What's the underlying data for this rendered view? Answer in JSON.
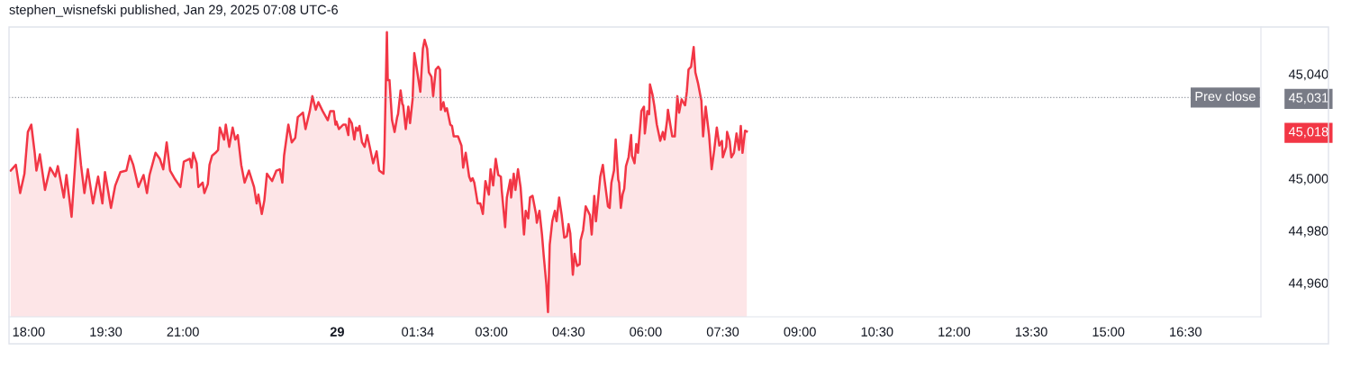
{
  "chart_data": {
    "type": "area",
    "title": "stephen_wisnefski published, Jan 29, 2025 07:08 UTC-6",
    "x": [
      "2025-01-28T17:39",
      "2025-01-28T17:45",
      "2025-01-28T17:50",
      "2025-01-28T17:55",
      "2025-01-28T17:59",
      "2025-01-28T18:03",
      "2025-01-28T18:07",
      "2025-01-28T18:09",
      "2025-01-28T18:13",
      "2025-01-28T18:19",
      "2025-01-28T18:25",
      "2025-01-28T18:31",
      "2025-01-28T18:34",
      "2025-01-28T18:41",
      "2025-01-28T18:44",
      "2025-01-28T18:50",
      "2025-01-28T18:57",
      "2025-01-28T19:01",
      "2025-01-28T19:05",
      "2025-01-28T19:09",
      "2025-01-28T19:15",
      "2025-01-28T19:21",
      "2025-01-28T19:26",
      "2025-01-28T19:29",
      "2025-01-28T19:36",
      "2025-01-28T19:41",
      "2025-01-28T19:47",
      "2025-01-28T19:54",
      "2025-01-28T19:58",
      "2025-01-28T20:02",
      "2025-01-28T20:08",
      "2025-01-28T20:14",
      "2025-01-28T20:18",
      "2025-01-28T20:21",
      "2025-01-28T20:28",
      "2025-01-28T20:33",
      "2025-01-28T20:37",
      "2025-01-28T20:41",
      "2025-01-28T20:45",
      "2025-01-28T20:50",
      "2025-01-28T20:57",
      "2025-01-28T21:01",
      "2025-01-28T21:08",
      "2025-01-28T21:10",
      "2025-01-28T21:12",
      "2025-01-28T21:16",
      "2025-01-28T21:18",
      "2025-01-28T21:23",
      "2025-01-28T21:25",
      "2025-01-28T21:29",
      "2025-01-28T21:31",
      "2025-01-28T21:34",
      "2025-01-28T21:38",
      "2025-01-28T21:41",
      "2025-01-28T21:43",
      "2025-01-28T21:48",
      "2025-01-28T21:50",
      "2025-01-28T21:54",
      "2025-01-28T21:58",
      "2025-01-28T22:01",
      "2025-01-28T22:04",
      "2025-01-28T22:08",
      "2025-01-28T22:12",
      "2025-01-28T22:17",
      "2025-01-28T22:23",
      "2025-01-28T22:26",
      "2025-01-28T22:28",
      "2025-01-28T22:32",
      "2025-01-28T22:35",
      "2025-01-28T22:38",
      "2025-01-28T22:44",
      "2025-01-28T22:49",
      "2025-01-28T22:53",
      "2025-01-28T22:56",
      "2025-01-28T22:58",
      "2025-01-28T23:03",
      "2025-01-28T23:07",
      "2025-01-28T23:11",
      "2025-01-28T23:14",
      "2025-01-28T23:20",
      "2025-01-28T23:23",
      "2025-01-28T23:28",
      "2025-01-28T23:31",
      "2025-01-28T23:35",
      "2025-01-28T23:38",
      "2025-01-28T23:43",
      "2025-01-28T23:49",
      "2025-01-28T23:52",
      "2025-01-28T23:56",
      "2025-01-28T23:58",
      "2025-01-28T23:59",
      "2025-01-29T00:02",
      "2025-01-29T00:07",
      "2025-01-29T00:10",
      "2025-01-29T00:13",
      "2025-01-29T00:14",
      "2025-01-29T00:17",
      "2025-01-29T00:20",
      "2025-01-29T00:22",
      "2025-01-29T00:24",
      "2025-01-29T00:26",
      "2025-01-29T00:29",
      "2025-01-29T00:32",
      "2025-01-29T00:35",
      "2025-01-29T00:38",
      "2025-01-29T00:42",
      "2025-01-29T00:46",
      "2025-01-29T00:49",
      "2025-01-29T00:54",
      "2025-01-29T00:55",
      "2025-01-29T00:58",
      "2025-01-29T00:59",
      "2025-01-29T01:01",
      "2025-01-29T01:04",
      "2025-01-29T01:07",
      "2025-01-29T01:10",
      "2025-01-29T01:11",
      "2025-01-29T01:14",
      "2025-01-29T01:16",
      "2025-01-29T01:17",
      "2025-01-29T01:20",
      "2025-01-29T01:23",
      "2025-01-29T01:25",
      "2025-01-29T01:28",
      "2025-01-29T01:30",
      "2025-01-29T01:33",
      "2025-01-29T01:37",
      "2025-01-29T01:40",
      "2025-01-29T01:42",
      "2025-01-29T01:45",
      "2025-01-29T01:47",
      "2025-01-29T01:50",
      "2025-01-29T01:52",
      "2025-01-29T01:55",
      "2025-01-29T01:58",
      "2025-01-29T02:00",
      "2025-01-29T02:01",
      "2025-01-29T02:04",
      "2025-01-29T02:06",
      "2025-01-29T02:08",
      "2025-01-29T02:12",
      "2025-01-29T02:14",
      "2025-01-29T02:16",
      "2025-01-29T02:21",
      "2025-01-29T02:25",
      "2025-01-29T02:27",
      "2025-01-29T02:30",
      "2025-01-29T02:34",
      "2025-01-29T02:36",
      "2025-01-29T02:38",
      "2025-01-29T02:40",
      "2025-01-29T02:44",
      "2025-01-29T02:47",
      "2025-01-29T02:50",
      "2025-01-29T02:53",
      "2025-01-29T02:57",
      "2025-01-29T02:59",
      "2025-01-29T03:02",
      "2025-01-29T03:05",
      "2025-01-29T03:08",
      "2025-01-29T03:11",
      "2025-01-29T03:12",
      "2025-01-29T03:16",
      "2025-01-29T03:18",
      "2025-01-29T03:22",
      "2025-01-29T03:23",
      "2025-01-29T03:26",
      "2025-01-29T03:28",
      "2025-01-29T03:31",
      "2025-01-29T03:34",
      "2025-01-29T03:38",
      "2025-01-29T03:40",
      "2025-01-29T03:43",
      "2025-01-29T03:45",
      "2025-01-29T03:48",
      "2025-01-29T03:52",
      "2025-01-29T03:53",
      "2025-01-29T03:56",
      "2025-01-29T03:59",
      "2025-01-29T04:01",
      "2025-01-29T04:04",
      "2025-01-29T04:06",
      "2025-01-29T04:08",
      "2025-01-29T04:11",
      "2025-01-29T04:14",
      "2025-01-29T04:16",
      "2025-01-29T04:19",
      "2025-01-29T04:22",
      "2025-01-29T04:25",
      "2025-01-29T04:28",
      "2025-01-29T04:30",
      "2025-01-29T04:32",
      "2025-01-29T04:35",
      "2025-01-29T04:37",
      "2025-01-29T04:40",
      "2025-01-29T04:43",
      "2025-01-29T04:44",
      "2025-01-29T04:47",
      "2025-01-29T04:50",
      "2025-01-29T04:55",
      "2025-01-29T04:57",
      "2025-01-29T05:00",
      "2025-01-29T05:02",
      "2025-01-29T05:07",
      "2025-01-29T05:10",
      "2025-01-29T05:12",
      "2025-01-29T05:16",
      "2025-01-29T05:18",
      "2025-01-29T05:20",
      "2025-01-29T05:23",
      "2025-01-29T05:25",
      "2025-01-29T05:28",
      "2025-01-29T05:29",
      "2025-01-29T05:31",
      "2025-01-29T05:33",
      "2025-01-29T05:35",
      "2025-01-29T05:37",
      "2025-01-29T05:40",
      "2025-01-29T05:43",
      "2025-01-29T05:44",
      "2025-01-29T05:47",
      "2025-01-29T05:49",
      "2025-01-29T05:51",
      "2025-01-29T05:55",
      "2025-01-29T05:58",
      "2025-01-29T05:59",
      "2025-01-29T06:02",
      "2025-01-29T06:04",
      "2025-01-29T06:05",
      "2025-01-29T06:08",
      "2025-01-29T06:10",
      "2025-01-29T06:13",
      "2025-01-29T06:17",
      "2025-01-29T06:20",
      "2025-01-29T06:22",
      "2025-01-29T06:25",
      "2025-01-29T06:26",
      "2025-01-29T06:29",
      "2025-01-29T06:31",
      "2025-01-29T06:34",
      "2025-01-29T06:37",
      "2025-01-29T06:39",
      "2025-01-29T06:42",
      "2025-01-29T06:46",
      "2025-01-29T06:48",
      "2025-01-29T06:50",
      "2025-01-29T06:53",
      "2025-01-29T06:56",
      "2025-01-29T06:58",
      "2025-01-29T07:01",
      "2025-01-29T07:05",
      "2025-01-29T07:07",
      "2025-01-29T07:10",
      "2025-01-29T07:14",
      "2025-01-29T07:17",
      "2025-01-29T07:20",
      "2025-01-29T07:23",
      "2025-01-29T07:26",
      "2025-01-29T07:29",
      "2025-01-29T07:30",
      "2025-01-29T07:34",
      "2025-01-29T07:35",
      "2025-01-29T07:38",
      "2025-01-29T07:40",
      "2025-01-29T07:43",
      "2025-01-29T07:46",
      "2025-01-29T07:49",
      "2025-01-29T07:51",
      "2025-01-29T07:53",
      "2025-01-29T07:56",
      "2025-01-29T07:58"
    ],
    "series": [
      {
        "color": "#f23645",
        "values": [
          45003.0,
          45005.2,
          44994.4,
          45001.8,
          45017.8,
          45020.6,
          45009.8,
          45003.0,
          45009.2,
          44995.6,
          45004.1,
          45000.7,
          45004.7,
          44992.7,
          45001.3,
          44985.3,
          45018.9,
          45005.2,
          44994.4,
          45003.5,
          44990.4,
          45000.7,
          44990.4,
          45002.4,
          44988.7,
          44997.3,
          45002.4,
          45003.0,
          45008.7,
          45005.2,
          44996.7,
          45001.3,
          44994.4,
          45001.3,
          45009.8,
          45007.5,
          45003.5,
          45013.8,
          45003.0,
          45000.1,
          44996.7,
          45006.4,
          45007.5,
          45004.1,
          45009.8,
          45005.8,
          44996.7,
          44998.4,
          44994.4,
          44997.8,
          45005.2,
          45008.7,
          45009.8,
          45010.9,
          45019.5,
          45014.9,
          45020.6,
          45012.1,
          45019.5,
          45014.9,
          45016.6,
          45005.2,
          44998.4,
          45003.0,
          44996.7,
          44990.4,
          44993.8,
          44986.4,
          44991.6,
          45001.8,
          44999.0,
          45003.0,
          45003.5,
          44998.4,
          45008.7,
          45020.6,
          45013.8,
          45015.5,
          45023.5,
          45025.2,
          45018.9,
          45025.8,
          45031.5,
          45026.3,
          45029.2,
          45025.8,
          45022.3,
          45025.8,
          45025.8,
          45020.6,
          45021.8,
          45018.9,
          45020.6,
          45020.6,
          45016.6,
          45022.9,
          45021.2,
          45014.9,
          45019.5,
          45018.3,
          45020.1,
          45013.8,
          45012.1,
          45016.6,
          45012.1,
          45005.8,
          45010.4,
          45003.0,
          45001.8,
          45008.7,
          45056.0,
          45037.7,
          45037.7,
          45022.3,
          45017.8,
          45023.5,
          45024.6,
          45033.7,
          45028.6,
          45028.0,
          45018.9,
          45027.5,
          45021.2,
          45030.3,
          45048.0,
          45041.7,
          45033.2,
          45049.7,
          45053.1,
          45049.7,
          45040.6,
          45038.9,
          45031.5,
          45041.7,
          45042.8,
          45041.7,
          45026.3,
          45029.2,
          45025.8,
          45026.9,
          45020.6,
          45020.1,
          45016.1,
          45016.1,
          45012.6,
          45004.1,
          45009.8,
          45000.7,
          44999.0,
          45000.1,
          44998.4,
          44990.4,
          44990.4,
          44986.4,
          44999.0,
          44993.8,
          45003.5,
          44997.3,
          45007.5,
          45001.3,
          45000.7,
          44995.6,
          44981.3,
          44992.7,
          44999.5,
          44992.7,
          45001.8,
          44995.6,
          45003.5,
          44996.7,
          44978.5,
          44987.6,
          44984.7,
          44992.7,
          44993.3,
          44986.4,
          44983.0,
          44987.6,
          44978.5,
          44970.5,
          44959.7,
          44948.8,
          44974.5,
          44983.6,
          44987.6,
          44983.6,
          44992.7,
          44985.9,
          44977.3,
          44977.9,
          44982.5,
          44979.0,
          44963.1,
          44971.1,
          44966.5,
          44967.1,
          44976.2,
          44980.2,
          44989.3,
          44985.9,
          44978.5,
          44993.3,
          44983.6,
          45000.7,
          45005.2,
          44999.5,
          44989.3,
          44988.7,
          44998.4,
          45003.0,
          45014.9,
          44999.5,
          44998.4,
          44988.7,
          44993.8,
          44996.1,
          45004.7,
          45008.1,
          45016.6,
          45008.7,
          45005.8,
          45013.2,
          45009.8,
          45025.8,
          45027.5,
          45017.2,
          45025.8,
          45024.6,
          45036.0,
          45032.0,
          45028.0,
          45020.6,
          45014.4,
          45017.8,
          45014.9,
          45022.3,
          45026.3,
          45020.1,
          45016.1,
          45016.1,
          45031.5,
          45025.2,
          45030.3,
          45028.0,
          45033.2,
          45041.7,
          45042.8,
          45050.3,
          45040.6,
          45036.6,
          45029.7,
          45016.1,
          45027.5,
          45016.6,
          45003.5,
          45010.9,
          45019.5,
          45012.6,
          45014.4,
          45008.1,
          45012.1,
          45017.8,
          45014.4,
          45008.1,
          45009.8,
          45017.2,
          45010.9,
          45020.1,
          45009.8,
          45018.3,
          45018.0
        ]
      }
    ],
    "xlim": [
      "2025-01-28T17:37",
      "2025-01-29T17:58"
    ],
    "xticks": [
      {
        "value": "2025-01-28T18:00",
        "label": "18:00"
      },
      {
        "value": "2025-01-28T19:30",
        "label": "19:30"
      },
      {
        "value": "2025-01-28T21:00",
        "label": "21:00"
      },
      {
        "value": "2025-01-29",
        "label": "29"
      },
      {
        "value": "2025-01-29T01:34",
        "label": "01:34"
      },
      {
        "value": "2025-01-29T03:00",
        "label": "03:00"
      },
      {
        "value": "2025-01-29T04:30",
        "label": "04:30"
      },
      {
        "value": "2025-01-29T06:00",
        "label": "06:00"
      },
      {
        "value": "2025-01-29T07:30",
        "label": "07:30"
      },
      {
        "value": "2025-01-29T09:00",
        "label": "09:00"
      },
      {
        "value": "2025-01-29T10:30",
        "label": "10:30"
      },
      {
        "value": "2025-01-29T12:00",
        "label": "12:00"
      },
      {
        "value": "2025-01-29T13:30",
        "label": "13:30"
      },
      {
        "value": "2025-01-29T15:00",
        "label": "15:00"
      },
      {
        "value": "2025-01-29T16:30",
        "label": "16:30"
      }
    ],
    "ylim": [
      44947,
      45058
    ],
    "yticks": [
      {
        "value": 44960,
        "label": "44,960"
      },
      {
        "value": 44980,
        "label": "44,980"
      },
      {
        "value": 45000,
        "label": "45,000"
      },
      {
        "value": 45018,
        "label": "45,018"
      },
      {
        "value": 45031,
        "label": "45,031"
      },
      {
        "value": 45040,
        "label": "45,040"
      }
    ],
    "ref_lines": [
      {
        "axis": "y",
        "value": 45031,
        "label": "Prev close",
        "color": "#9598a1",
        "line_style": "dotted"
      }
    ],
    "grid": false
  }
}
